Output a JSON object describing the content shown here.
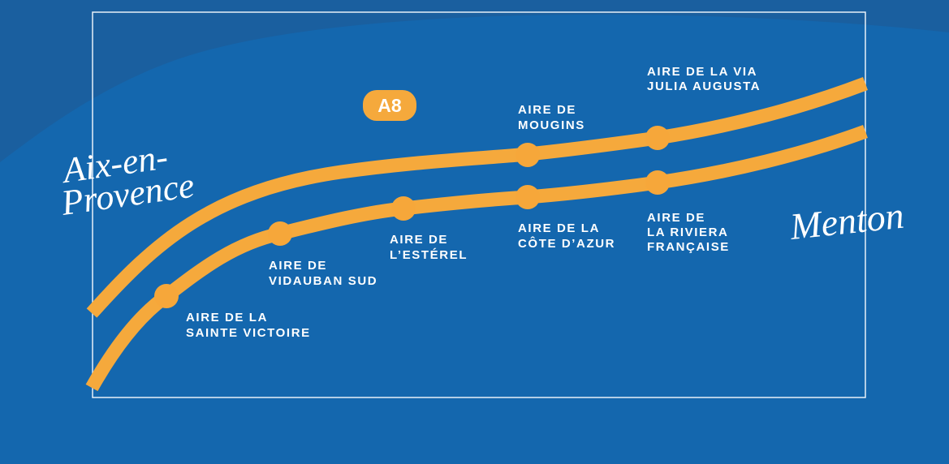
{
  "road": "A8",
  "start_city": {
    "lines": [
      "Aix-en-",
      "Provence"
    ]
  },
  "end_city": "Menton",
  "stops": [
    {
      "lines": [
        "AIRE DE LA",
        "SAINTE VICTOIRE"
      ]
    },
    {
      "lines": [
        "AIRE DE",
        "VIDAUBAN SUD"
      ]
    },
    {
      "lines": [
        "AIRE DE",
        "L’ESTÉREL"
      ]
    },
    {
      "lines": [
        "AIRE DE",
        "MOUGINS"
      ]
    },
    {
      "lines": [
        "AIRE DE LA",
        "CÔTE D’AZUR"
      ]
    },
    {
      "lines": [
        "AIRE DE LA VIA",
        "JULIA AUGUSTA"
      ]
    },
    {
      "lines": [
        "AIRE DE",
        "LA RIVIERA",
        "FRANÇAISE"
      ]
    }
  ]
}
